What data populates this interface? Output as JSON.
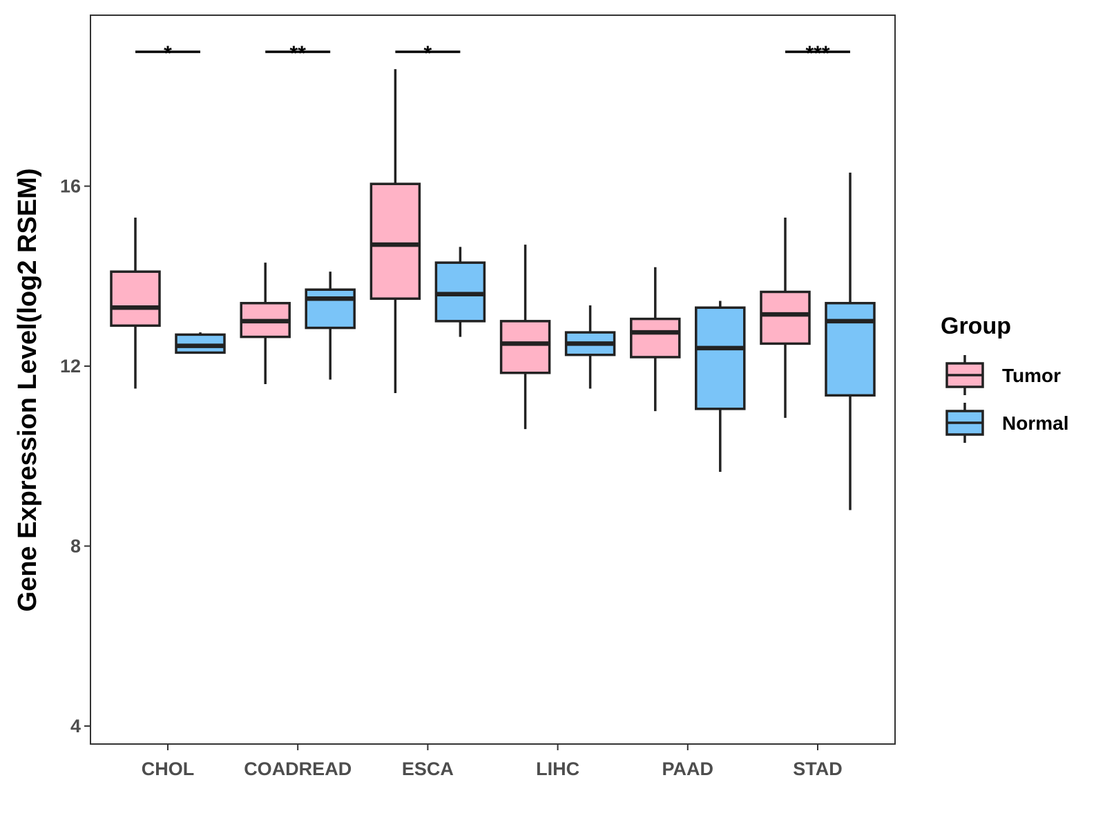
{
  "chart_data": {
    "type": "boxplot",
    "title": "",
    "xlabel": "",
    "ylabel": "Gene Expression Level(log2 RSEM)",
    "ylim": [
      3.6,
      19.8
    ],
    "yticks": [
      4,
      8,
      12,
      16
    ],
    "ytick_labels": [
      "4",
      "8",
      "12",
      "16"
    ],
    "categories": [
      "CHOL",
      "COADREAD",
      "ESCA",
      "LIHC",
      "PAAD",
      "STAD"
    ],
    "legend": {
      "title": "Group",
      "placement": "right",
      "entries": [
        {
          "name": "Tumor",
          "color": "#FFB3C6"
        },
        {
          "name": "Normal",
          "color": "#7AC4F8"
        }
      ]
    },
    "series": [
      {
        "name": "Tumor",
        "color": "#FFB3C6",
        "boxes": [
          {
            "min": 11.5,
            "q1": 12.9,
            "median": 13.3,
            "q3": 14.1,
            "max": 15.3
          },
          {
            "min": 11.6,
            "q1": 12.65,
            "median": 13.0,
            "q3": 13.4,
            "max": 14.3
          },
          {
            "min": 11.4,
            "q1": 13.5,
            "median": 14.7,
            "q3": 16.05,
            "max": 18.6
          },
          {
            "min": 10.6,
            "q1": 11.85,
            "median": 12.5,
            "q3": 13.0,
            "max": 14.7
          },
          {
            "min": 11.0,
            "q1": 12.2,
            "median": 12.75,
            "q3": 13.05,
            "max": 14.2
          },
          {
            "min": 10.85,
            "q1": 12.5,
            "median": 13.15,
            "q3": 13.65,
            "max": 15.3
          }
        ]
      },
      {
        "name": "Normal",
        "color": "#7AC4F8",
        "boxes": [
          {
            "min": 12.3,
            "q1": 12.3,
            "median": 12.45,
            "q3": 12.7,
            "max": 12.75
          },
          {
            "min": 11.7,
            "q1": 12.85,
            "median": 13.5,
            "q3": 13.7,
            "max": 14.1
          },
          {
            "min": 12.65,
            "q1": 13.0,
            "median": 13.6,
            "q3": 14.3,
            "max": 14.65
          },
          {
            "min": 11.5,
            "q1": 12.25,
            "median": 12.5,
            "q3": 12.75,
            "max": 13.35
          },
          {
            "min": 9.65,
            "q1": 11.05,
            "median": 12.4,
            "q3": 13.3,
            "max": 13.45
          },
          {
            "min": 8.8,
            "q1": 11.35,
            "median": 13.0,
            "q3": 13.4,
            "max": 16.3
          }
        ]
      }
    ],
    "significance": [
      {
        "category": "CHOL",
        "label": "*"
      },
      {
        "category": "COADREAD",
        "label": "**"
      },
      {
        "category": "ESCA",
        "label": "*"
      },
      {
        "category": "STAD",
        "label": "***"
      }
    ]
  }
}
